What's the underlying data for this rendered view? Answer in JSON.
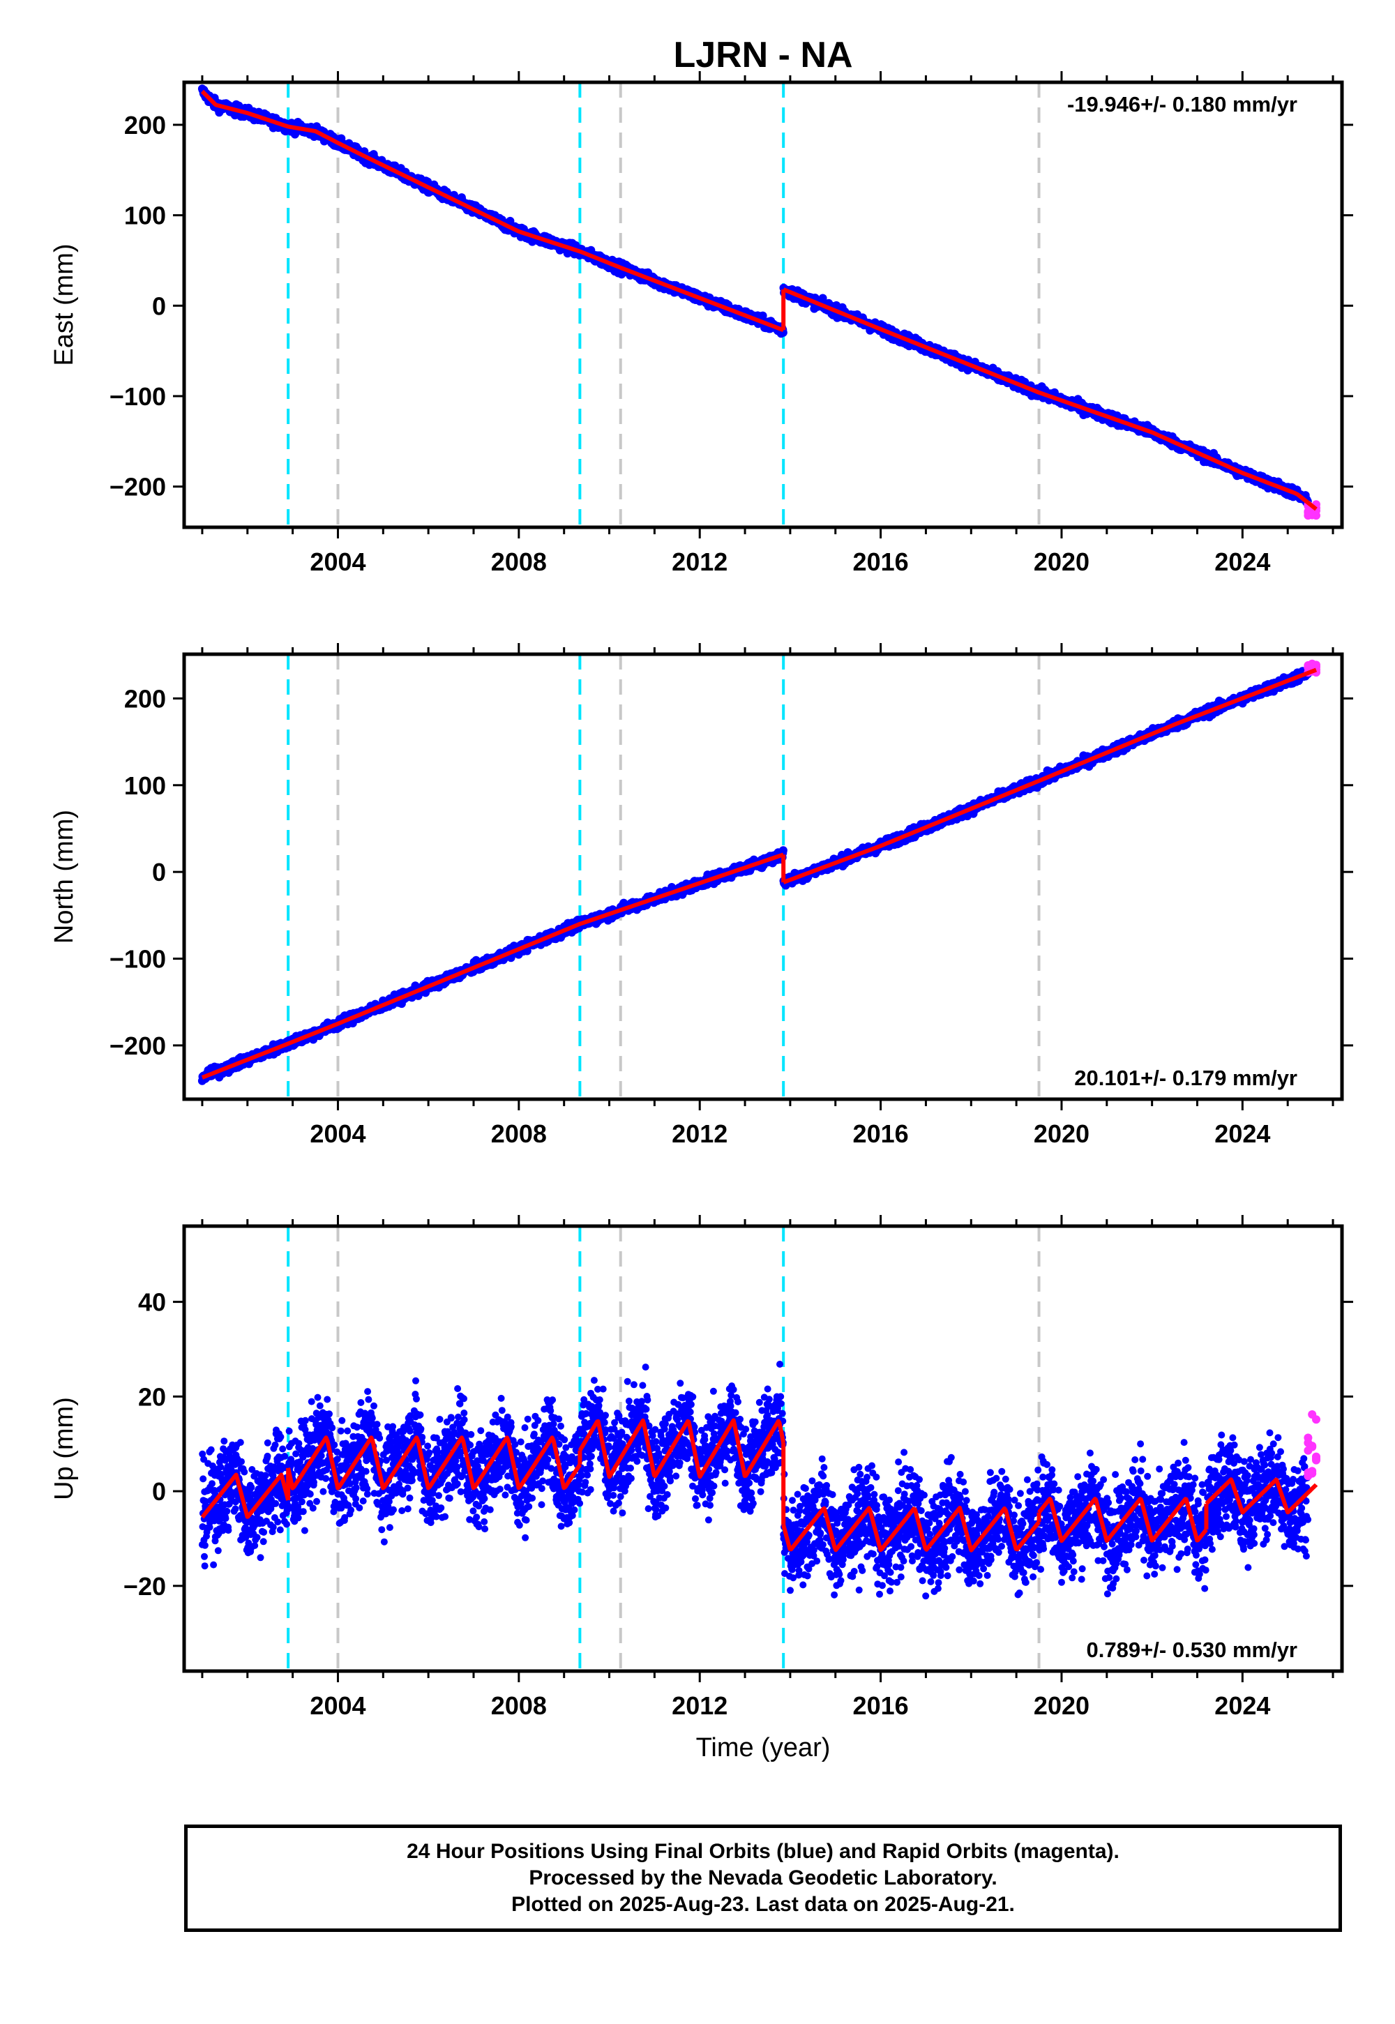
{
  "figure": {
    "title": "LJRN - NA"
  },
  "colors": {
    "final_orbits": "#0000ff",
    "rapid_orbits": "#ff33ff",
    "model": "#ff0000",
    "equipment_change": "#00e5ff",
    "event": "#c8c8c8"
  },
  "footer": {
    "line1": "24 Hour Positions Using Final Orbits (blue) and Rapid Orbits (magenta).",
    "line2": "Processed by the Nevada Geodetic Laboratory.",
    "line3": "Plotted on 2025-Aug-23. Last data on 2025-Aug-21."
  },
  "chart_data": [
    {
      "type": "scatter",
      "component": "east",
      "ylabel": "East (mm)",
      "xlabel": "",
      "xlim": [
        2000.6,
        2026.2
      ],
      "ylim": [
        -245,
        247
      ],
      "xticks": [
        2004,
        2008,
        2012,
        2016,
        2020,
        2024
      ],
      "yticks": [
        -200,
        -100,
        0,
        100,
        200
      ],
      "ytick_labels": [
        "−200",
        "−100",
        "0",
        "100",
        "200"
      ],
      "rate_text": "-19.946+/- 0.180 mm/yr",
      "rate_position": "top-right",
      "equipment_changes": [
        2002.9,
        2009.35,
        2013.85
      ],
      "events": [
        2004.0,
        2010.25,
        2019.5
      ],
      "model_segments": [
        {
          "x": [
            2001.0,
            2001.3,
            2002.0,
            2002.9,
            2003.5,
            2004.0,
            2004.6
          ],
          "y": [
            237,
            222,
            213,
            198,
            193,
            180,
            165
          ]
        },
        {
          "x": [
            2004.6,
            2008.0,
            2009.35,
            2010.25,
            2013.85
          ],
          "y": [
            165,
            82,
            60,
            42,
            -27
          ]
        },
        {
          "x": [
            2013.85,
            2016.0,
            2019.5,
            2022.0,
            2024.0,
            2025.2,
            2025.63
          ],
          "y": [
            18,
            -26,
            -96,
            -140,
            -185,
            -208,
            -225
          ]
        }
      ],
      "rapid_points": {
        "x_range": [
          2025.45,
          2025.63
        ],
        "y_range": [
          -232,
          -218
        ]
      },
      "scatter_noise_mm": 4
    },
    {
      "type": "scatter",
      "component": "north",
      "ylabel": "North (mm)",
      "xlabel": "",
      "xlim": [
        2000.6,
        2026.2
      ],
      "ylim": [
        -262,
        251
      ],
      "xticks": [
        2004,
        2008,
        2012,
        2016,
        2020,
        2024
      ],
      "yticks": [
        -200,
        -100,
        0,
        100,
        200
      ],
      "ytick_labels": [
        "−200",
        "−100",
        "0",
        "100",
        "200"
      ],
      "rate_text": "20.101+/- 0.179 mm/yr",
      "rate_position": "bottom-right",
      "equipment_changes": [
        2002.9,
        2009.35,
        2013.85
      ],
      "events": [
        2004.0,
        2010.25,
        2019.5
      ],
      "model_segments": [
        {
          "x": [
            2001.0,
            2002.9,
            2004.0,
            2009.35,
            2013.85
          ],
          "y": [
            -237,
            -198,
            -175,
            -60,
            20
          ]
        },
        {
          "x": [
            2013.85,
            2016.0,
            2019.5,
            2022.5,
            2025.63
          ],
          "y": [
            -12,
            30,
            105,
            170,
            233
          ]
        }
      ],
      "rapid_points": {
        "x_range": [
          2025.45,
          2025.63
        ],
        "y_range": [
          230,
          240
        ]
      },
      "scatter_noise_mm": 4
    },
    {
      "type": "scatter",
      "component": "up",
      "ylabel": "Up (mm)",
      "xlabel": "Time (year)",
      "xlim": [
        2000.6,
        2026.2
      ],
      "ylim": [
        -38,
        56
      ],
      "xticks": [
        2004,
        2008,
        2012,
        2016,
        2020,
        2024
      ],
      "yticks": [
        -20,
        0,
        20,
        40
      ],
      "ytick_labels": [
        "−20",
        "0",
        "20",
        "40"
      ],
      "rate_text": "0.789+/- 0.530 mm/yr",
      "rate_position": "bottom-right",
      "equipment_changes": [
        2002.9,
        2009.35,
        2013.85
      ],
      "events": [
        2004.0,
        2010.25,
        2019.5
      ],
      "model_segments": [
        {
          "x": [
            2001.0,
            2002.9
          ],
          "offset": -1,
          "amplitude": 4.5
        },
        {
          "x": [
            2002.9,
            2009.35
          ],
          "offset": 6,
          "amplitude": 5.5
        },
        {
          "x": [
            2009.35,
            2013.85
          ],
          "offset": 9,
          "amplitude": 6
        },
        {
          "x": [
            2013.85,
            2019.5
          ],
          "offset": -8,
          "amplitude": 4.5
        },
        {
          "x": [
            2019.5,
            2023.2
          ],
          "offset": -6,
          "amplitude": 4.5
        },
        {
          "x": [
            2023.2,
            2025.63
          ],
          "offset": -1,
          "amplitude": 3.5
        }
      ],
      "rapid_points": {
        "x_range": [
          2025.45,
          2025.63
        ],
        "y_range": [
          2,
          18
        ]
      },
      "scatter_noise_mm": 7
    }
  ]
}
